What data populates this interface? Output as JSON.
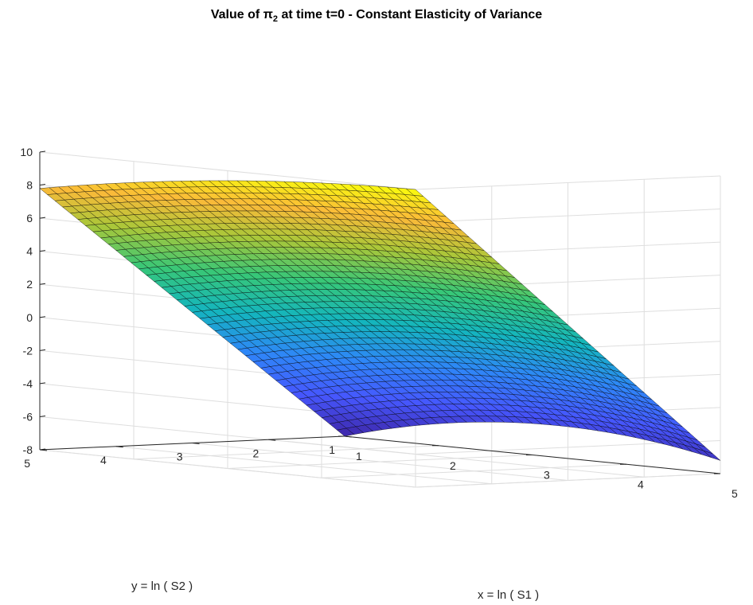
{
  "chart_data": {
    "type": "surface",
    "title": {
      "prefix": "Value of ",
      "symbol": "π",
      "subscript": "2",
      "suffix": " at time t=0 - Constant Elasticity of Variance"
    },
    "xlabel": "x = ln ( S1 )",
    "ylabel": "y = ln ( S2 )",
    "zlabel": "",
    "xlim": [
      1,
      5
    ],
    "ylim": [
      1,
      5
    ],
    "zlim": [
      -8,
      10
    ],
    "xticks": [
      "1",
      "2",
      "3",
      "4",
      "5"
    ],
    "yticks": [
      "1",
      "2",
      "3",
      "4",
      "5"
    ],
    "zticks": [
      "-8",
      "-6",
      "-4",
      "-2",
      "0",
      "2",
      "4",
      "6",
      "8",
      "10"
    ],
    "grid": true,
    "colormap": "parula",
    "corner_values": [
      {
        "x": 1,
        "y": 1,
        "z": -8.0
      },
      {
        "x": 5,
        "y": 1,
        "z": -7.2
      },
      {
        "x": 1,
        "y": 5,
        "z": 7.8
      },
      {
        "x": 5,
        "y": 5,
        "z": 10.0
      }
    ],
    "colors": {
      "low": "#3e26a8",
      "mid": "#14b8a6",
      "high": "#f9fb0e",
      "edge": "#000000"
    }
  }
}
